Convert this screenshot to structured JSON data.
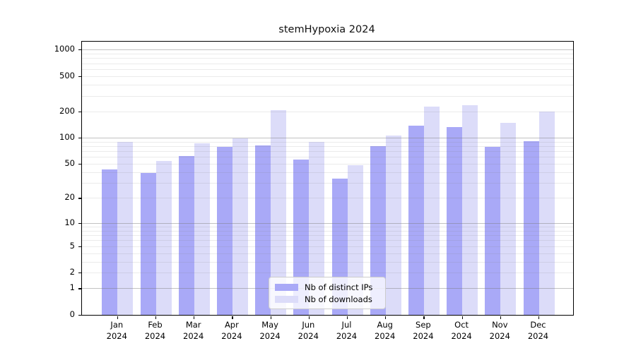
{
  "title": "stemHypoxia 2024",
  "colors": {
    "distinct_ips_bar": "#a9a9f7",
    "downloads_bar": "#dcdcf9",
    "axis": "#000000",
    "major_gridline": "#c4c4c4",
    "minor_gridline": "#ececec",
    "legend_border": "#cccccc"
  },
  "legend": {
    "items": [
      {
        "label": "Nb of distinct IPs",
        "color": "#a9a9f7"
      },
      {
        "label": "Nb of downloads",
        "color": "#dcdcf9"
      }
    ]
  },
  "x_axis": {
    "year_label": "2024",
    "months": [
      "Jan",
      "Feb",
      "Mar",
      "Apr",
      "May",
      "Jun",
      "Jul",
      "Aug",
      "Sep",
      "Oct",
      "Nov",
      "Dec"
    ]
  },
  "y_axis": {
    "tick_labels": [
      1000,
      500,
      200,
      100,
      50,
      20,
      10,
      5,
      2,
      1,
      0
    ]
  },
  "chart_data": {
    "type": "bar",
    "title": "stemHypoxia 2024",
    "categories": [
      "Jan 2024",
      "Feb 2024",
      "Mar 2024",
      "Apr 2024",
      "May 2024",
      "Jun 2024",
      "Jul 2024",
      "Aug 2024",
      "Sep 2024",
      "Oct 2024",
      "Nov 2024",
      "Dec 2024"
    ],
    "series": [
      {
        "name": "Nb of distinct IPs",
        "color": "#a9a9f7",
        "values": [
          43,
          39,
          62,
          78,
          82,
          56,
          34,
          80,
          138,
          131,
          78,
          92
        ]
      },
      {
        "name": "Nb of downloads",
        "color": "#dcdcf9",
        "values": [
          89,
          54,
          86,
          98,
          205,
          89,
          48,
          106,
          226,
          233,
          147,
          200
        ]
      }
    ],
    "xlabel": "",
    "ylabel": "",
    "yscale": "log10(value+1)",
    "ylim": [
      0,
      1230
    ],
    "yticks": [
      0,
      1,
      2,
      5,
      10,
      20,
      50,
      100,
      200,
      500,
      1000
    ],
    "minor_grid_values": [
      2,
      3,
      4,
      5,
      6,
      7,
      8,
      9,
      20,
      30,
      40,
      50,
      60,
      70,
      80,
      90,
      200,
      300,
      400,
      500,
      600,
      700,
      800,
      900
    ],
    "major_grid_values": [
      1,
      10,
      100,
      1000
    ],
    "grid": "horizontal major+minor, drawn above bars",
    "legend_position": "lower center (inside axes)"
  }
}
